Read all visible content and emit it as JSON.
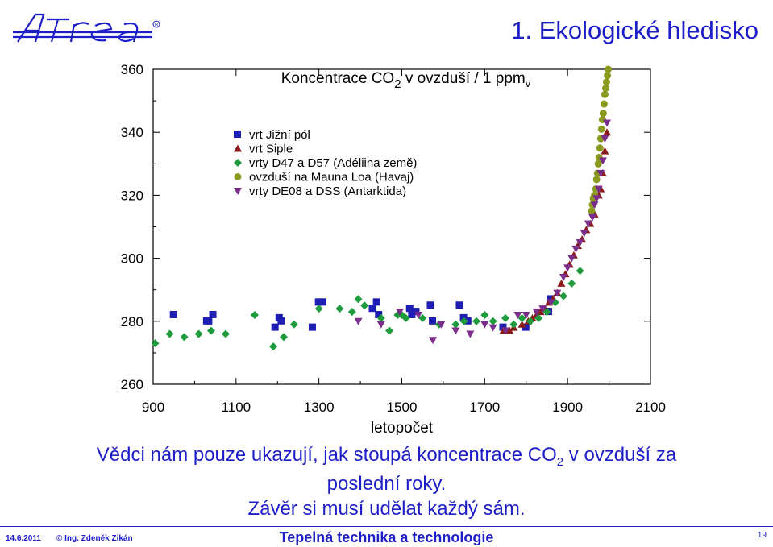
{
  "header": {
    "logo_text": "Atrea®",
    "slide_title": "1.   Ekologické hledisko"
  },
  "caption": {
    "line1_before": "Vědci nám pouze ukazují, jak stoupá koncentrace CO",
    "line1_sub": "2",
    "line1_after": " v ovzduší za",
    "line2": "poslední roky.",
    "line3": "Závěr si musí udělat každý sám."
  },
  "footer": {
    "date": "14.6.2011",
    "author": "© Ing. Zdeněk Zikán",
    "center": "Tepelná technika a technologie",
    "page": "19"
  },
  "colors": {
    "title_blue": "#1e1ec8",
    "south_pole": "#1e1eb4",
    "siple": "#8b1a1a",
    "d47": "#1e9b3c",
    "mauna_loa": "#8a9a1e",
    "de08": "#7a2d8a"
  },
  "chart_data": {
    "type": "scatter",
    "title": "Koncentrace CO",
    "title_sub": "2",
    "title_after": " v ovzduší / 1 ppm",
    "title_unit_sub": "v",
    "xlabel": "letopočet",
    "ylabel": "",
    "xlim": [
      900,
      2100
    ],
    "ylim": [
      260,
      360
    ],
    "xticks": [
      900,
      1100,
      1300,
      1500,
      1700,
      1900,
      2100
    ],
    "yticks": [
      260,
      280,
      300,
      320,
      340,
      360
    ],
    "grid": false,
    "legend_position": "top-left",
    "series": [
      {
        "name": "vrt Jižní pól",
        "marker": "square",
        "color": "#1e1eb4",
        "points": [
          [
            950,
            282
          ],
          [
            1030,
            280
          ],
          [
            1035,
            280
          ],
          [
            1045,
            282
          ],
          [
            1195,
            278
          ],
          [
            1205,
            281
          ],
          [
            1210,
            280
          ],
          [
            1285,
            278
          ],
          [
            1300,
            286
          ],
          [
            1310,
            286
          ],
          [
            1430,
            284
          ],
          [
            1440,
            286
          ],
          [
            1445,
            282
          ],
          [
            1520,
            284
          ],
          [
            1525,
            282
          ],
          [
            1535,
            283
          ],
          [
            1570,
            285
          ],
          [
            1575,
            280
          ],
          [
            1640,
            285
          ],
          [
            1650,
            281
          ],
          [
            1660,
            280
          ],
          [
            1745,
            278
          ],
          [
            1800,
            278
          ],
          [
            1855,
            283
          ],
          [
            1860,
            287
          ]
        ]
      },
      {
        "name": "vrt Siple",
        "marker": "triangle-up",
        "color": "#8b1a1a",
        "points": [
          [
            1745,
            277
          ],
          [
            1760,
            277
          ],
          [
            1770,
            278
          ],
          [
            1790,
            279
          ],
          [
            1805,
            280
          ],
          [
            1815,
            281
          ],
          [
            1825,
            282
          ],
          [
            1835,
            283
          ],
          [
            1845,
            284
          ],
          [
            1855,
            286
          ],
          [
            1865,
            287
          ],
          [
            1875,
            289
          ],
          [
            1885,
            292
          ],
          [
            1895,
            295
          ],
          [
            1905,
            298
          ],
          [
            1915,
            301
          ],
          [
            1925,
            304
          ],
          [
            1935,
            306
          ],
          [
            1945,
            309
          ],
          [
            1955,
            311
          ],
          [
            1965,
            314
          ],
          [
            1975,
            320
          ],
          [
            1980,
            322
          ],
          [
            1985,
            327
          ],
          [
            1990,
            334
          ],
          [
            1995,
            340
          ]
        ]
      },
      {
        "name": "vrty D47 a D57 (Adéliina země)",
        "marker": "diamond",
        "color": "#1e9b3c",
        "points": [
          [
            905,
            273
          ],
          [
            940,
            276
          ],
          [
            975,
            275
          ],
          [
            1010,
            276
          ],
          [
            1040,
            277
          ],
          [
            1075,
            276
          ],
          [
            1145,
            282
          ],
          [
            1190,
            272
          ],
          [
            1215,
            275
          ],
          [
            1240,
            279
          ],
          [
            1300,
            284
          ],
          [
            1350,
            284
          ],
          [
            1380,
            283
          ],
          [
            1395,
            287
          ],
          [
            1410,
            285
          ],
          [
            1450,
            281
          ],
          [
            1470,
            277
          ],
          [
            1490,
            282
          ],
          [
            1500,
            282
          ],
          [
            1510,
            281
          ],
          [
            1550,
            281
          ],
          [
            1590,
            279
          ],
          [
            1630,
            279
          ],
          [
            1650,
            280
          ],
          [
            1680,
            280
          ],
          [
            1700,
            282
          ],
          [
            1720,
            280
          ],
          [
            1750,
            281
          ],
          [
            1770,
            279
          ],
          [
            1790,
            281
          ],
          [
            1810,
            280
          ],
          [
            1830,
            281
          ],
          [
            1850,
            283
          ],
          [
            1870,
            286
          ],
          [
            1890,
            288
          ],
          [
            1910,
            292
          ],
          [
            1930,
            296
          ]
        ]
      },
      {
        "name": "ovzduší na Mauna Loa (Havaj)",
        "marker": "circle",
        "color": "#8a9a1e",
        "points": [
          [
            1958,
            315
          ],
          [
            1960,
            317
          ],
          [
            1962,
            319
          ],
          [
            1965,
            320
          ],
          [
            1968,
            322
          ],
          [
            1970,
            325
          ],
          [
            1972,
            327
          ],
          [
            1974,
            330
          ],
          [
            1976,
            332
          ],
          [
            1978,
            335
          ],
          [
            1980,
            338
          ],
          [
            1982,
            341
          ],
          [
            1984,
            344
          ],
          [
            1986,
            346
          ],
          [
            1988,
            349
          ],
          [
            1990,
            352
          ],
          [
            1992,
            354
          ],
          [
            1994,
            356
          ],
          [
            1996,
            358
          ],
          [
            1998,
            360
          ]
        ]
      },
      {
        "name": "vrty DE08 a DSS (Antarktida)",
        "marker": "triangle-down",
        "color": "#7a2d8a",
        "points": [
          [
            1395,
            280
          ],
          [
            1450,
            279
          ],
          [
            1495,
            283
          ],
          [
            1540,
            282
          ],
          [
            1575,
            274
          ],
          [
            1595,
            279
          ],
          [
            1630,
            277
          ],
          [
            1665,
            276
          ],
          [
            1700,
            279
          ],
          [
            1720,
            278
          ],
          [
            1750,
            277
          ],
          [
            1780,
            282
          ],
          [
            1800,
            282
          ],
          [
            1825,
            283
          ],
          [
            1840,
            284
          ],
          [
            1860,
            286
          ],
          [
            1875,
            289
          ],
          [
            1890,
            294
          ],
          [
            1900,
            297
          ],
          [
            1910,
            300
          ],
          [
            1920,
            303
          ],
          [
            1930,
            305
          ],
          [
            1940,
            308
          ],
          [
            1950,
            311
          ],
          [
            1960,
            313
          ],
          [
            1965,
            317
          ],
          [
            1970,
            319
          ],
          [
            1975,
            322
          ],
          [
            1980,
            327
          ],
          [
            1985,
            331
          ],
          [
            1990,
            338
          ],
          [
            1995,
            343
          ]
        ]
      }
    ]
  }
}
